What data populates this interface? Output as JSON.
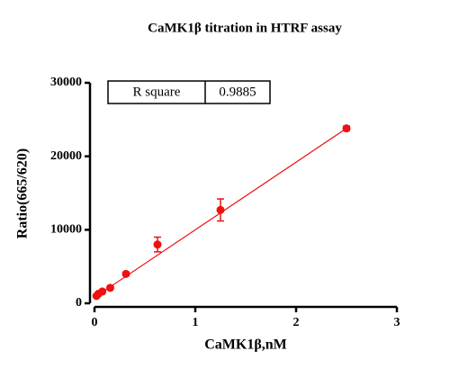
{
  "chart_data": {
    "type": "scatter",
    "title": "CaMK1β titration in HTRF assay",
    "x_label": "CaMK1β,nM",
    "y_label": "Ratio(665/620)",
    "xlim": [
      0,
      3
    ],
    "xticks": [
      0,
      1,
      2,
      3
    ],
    "ylim": [
      0,
      30000
    ],
    "yticks": [
      0,
      10000,
      20000,
      30000
    ],
    "series": [
      {
        "color": "#ee1111",
        "x": [
          0.0195,
          0.039,
          0.078,
          0.156,
          0.3125,
          0.625,
          1.25,
          2.5
        ],
        "values": [
          1000,
          1300,
          1600,
          2100,
          4000,
          8000,
          12700,
          23800
        ],
        "errors": [
          100,
          100,
          100,
          200,
          200,
          1000,
          1500,
          300
        ]
      }
    ],
    "fit": {
      "color": "#ee1111",
      "x": [
        0,
        2.5
      ],
      "values": [
        800,
        23800
      ]
    },
    "annotation": {
      "label": "R square",
      "value": 0.9885
    }
  }
}
